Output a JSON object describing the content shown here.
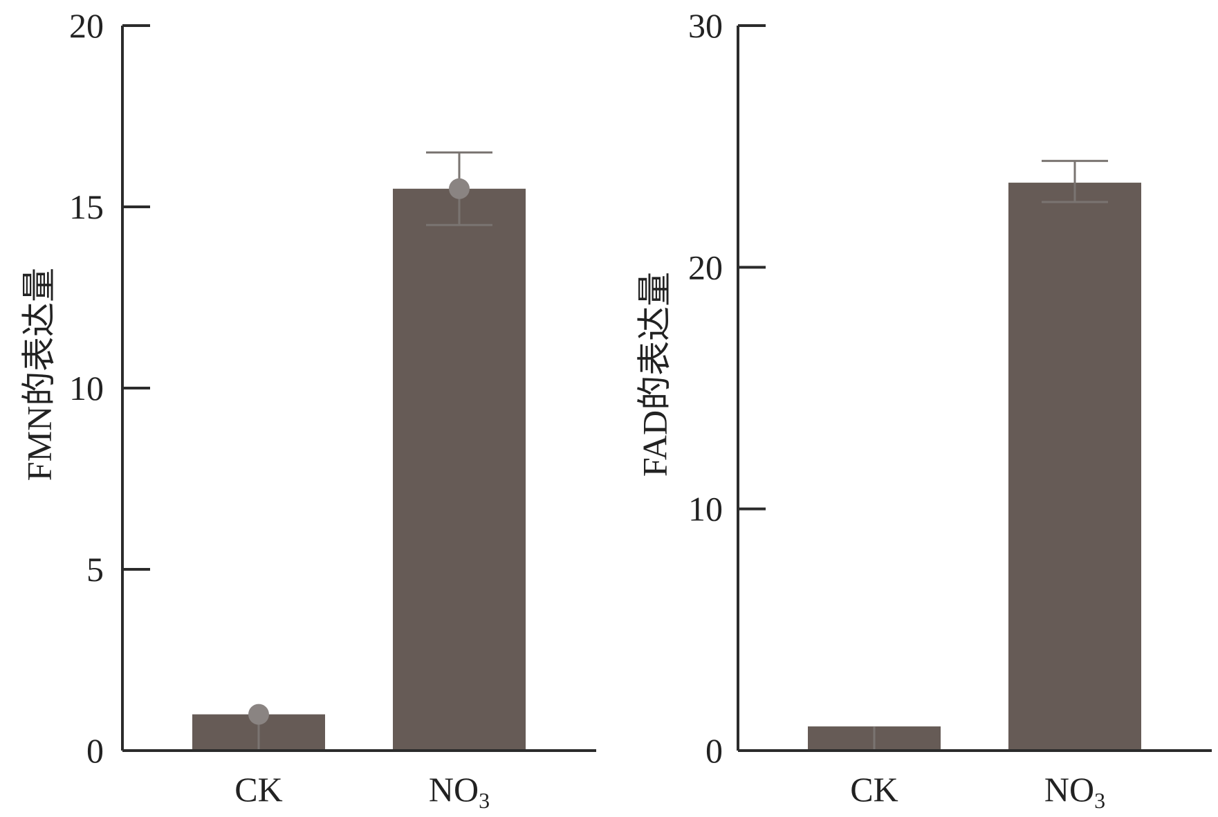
{
  "colors": {
    "bar": "#665b56",
    "axis": "#2b2b2b",
    "errorbar": "#7a7471",
    "point": "#8a8482"
  },
  "chart_data": [
    {
      "type": "bar",
      "categories": [
        "CK",
        "NO3"
      ],
      "category_display": [
        {
          "main": "CK",
          "sub": ""
        },
        {
          "main": "NO",
          "sub": "3"
        }
      ],
      "values": [
        1.0,
        15.5
      ],
      "error_upper": [
        1.0,
        16.5
      ],
      "error_lower": [
        0.0,
        14.5
      ],
      "points": [
        1.0,
        15.5
      ],
      "ylabel": "FMN的表达量",
      "ylim": [
        0,
        20
      ],
      "yticks": [
        0,
        5,
        10,
        15,
        20
      ],
      "grid": false
    },
    {
      "type": "bar",
      "categories": [
        "CK",
        "NO3"
      ],
      "category_display": [
        {
          "main": "CK",
          "sub": ""
        },
        {
          "main": "NO",
          "sub": "3"
        }
      ],
      "values": [
        1.0,
        23.5
      ],
      "error_upper": [
        1.0,
        24.4
      ],
      "error_lower": [
        0.0,
        22.7
      ],
      "points": [],
      "ylabel": "FAD的表达量",
      "ylim": [
        0,
        30
      ],
      "yticks": [
        0,
        10,
        20,
        30
      ],
      "grid": false
    }
  ]
}
